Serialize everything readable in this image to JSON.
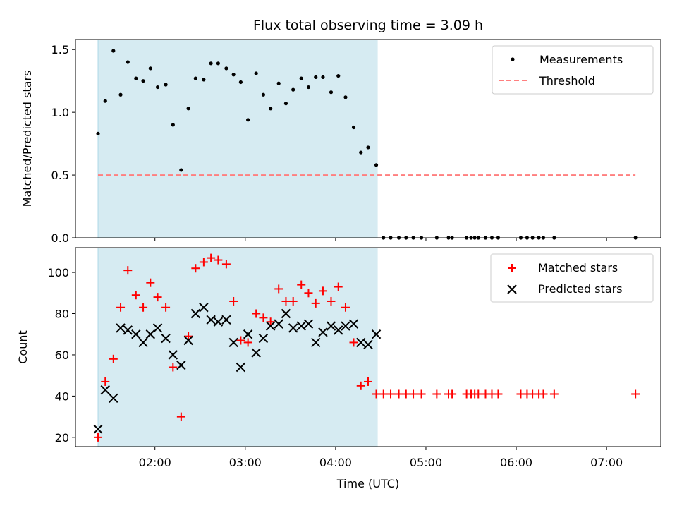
{
  "chart_data": [
    {
      "type": "scatter",
      "title": "Flux total observing time = 3.09 h",
      "xlabel": "",
      "ylabel": "Matched/Predicted stars",
      "ylim": [
        0,
        1.58
      ],
      "yticks": [
        0.0,
        0.5,
        1.0,
        1.5
      ],
      "ytick_labels": [
        "0.0",
        "0.5",
        "1.0",
        "1.5"
      ],
      "xlim": [
        1.12,
        7.6
      ],
      "legend_position": "upper right",
      "shaded_span": [
        1.37,
        4.46
      ],
      "shade_color": "#add8e6",
      "series": [
        {
          "name": "Measurements",
          "kind": "points",
          "color": "#000000",
          "x": [
            1.37,
            1.45,
            1.54,
            1.62,
            1.7,
            1.79,
            1.87,
            1.95,
            2.03,
            2.12,
            2.2,
            2.29,
            2.37,
            2.45,
            2.54,
            2.62,
            2.7,
            2.79,
            2.87,
            2.95,
            3.03,
            3.12,
            3.2,
            3.28,
            3.37,
            3.45,
            3.53,
            3.62,
            3.7,
            3.78,
            3.86,
            3.95,
            4.03,
            4.11,
            4.2,
            4.28,
            4.36,
            4.45,
            4.53,
            4.61,
            4.7,
            4.78,
            4.86,
            4.95,
            5.12,
            5.25,
            5.29,
            5.45,
            5.5,
            5.54,
            5.58,
            5.66,
            5.73,
            5.8,
            6.05,
            6.12,
            6.18,
            6.25,
            6.3,
            6.42,
            7.32
          ],
          "values": [
            0.83,
            1.09,
            1.49,
            1.14,
            1.4,
            1.27,
            1.25,
            1.35,
            1.2,
            1.22,
            0.9,
            0.54,
            1.03,
            1.27,
            1.26,
            1.39,
            1.39,
            1.35,
            1.3,
            1.24,
            0.94,
            1.31,
            1.14,
            1.03,
            1.23,
            1.07,
            1.18,
            1.27,
            1.2,
            1.28,
            1.28,
            1.16,
            1.29,
            1.12,
            0.88,
            0.68,
            0.72,
            0.58,
            0,
            0,
            0,
            0,
            0,
            0,
            0,
            0,
            0,
            0,
            0,
            0,
            0,
            0,
            0,
            0,
            0,
            0,
            0,
            0,
            0,
            0,
            0
          ]
        },
        {
          "name": "Threshold",
          "kind": "dashed-line",
          "color": "#ff7f7f",
          "x": [
            1.37,
            7.32
          ],
          "values": [
            0.5,
            0.5
          ]
        }
      ]
    },
    {
      "type": "scatter",
      "title": "",
      "xlabel": "Time (UTC)",
      "ylabel": "Count",
      "ylim": [
        15.5,
        112
      ],
      "yticks": [
        20,
        40,
        60,
        80,
        100
      ],
      "ytick_labels": [
        "20",
        "40",
        "60",
        "80",
        "100"
      ],
      "xlim": [
        1.12,
        7.6
      ],
      "xticks": [
        2,
        3,
        4,
        5,
        6,
        7
      ],
      "xtick_labels": [
        "02:00",
        "03:00",
        "04:00",
        "05:00",
        "06:00",
        "07:00"
      ],
      "legend_position": "upper right",
      "shaded_span": [
        1.37,
        4.46
      ],
      "shade_color": "#add8e6",
      "series": [
        {
          "name": "Matched stars",
          "marker": "plus",
          "color": "#ff0000",
          "x": [
            1.37,
            1.45,
            1.54,
            1.62,
            1.7,
            1.79,
            1.87,
            1.95,
            2.03,
            2.12,
            2.2,
            2.29,
            2.37,
            2.45,
            2.54,
            2.62,
            2.7,
            2.79,
            2.87,
            2.95,
            3.03,
            3.12,
            3.2,
            3.28,
            3.37,
            3.45,
            3.53,
            3.62,
            3.7,
            3.78,
            3.86,
            3.95,
            4.03,
            4.11,
            4.2,
            4.28,
            4.36,
            4.45,
            4.53,
            4.61,
            4.7,
            4.78,
            4.86,
            4.95,
            5.12,
            5.25,
            5.29,
            5.45,
            5.5,
            5.54,
            5.58,
            5.66,
            5.73,
            5.8,
            6.05,
            6.12,
            6.18,
            6.25,
            6.3,
            6.42,
            7.32
          ],
          "values": [
            20,
            47,
            58,
            83,
            101,
            89,
            83,
            95,
            88,
            83,
            54,
            30,
            69,
            102,
            105,
            107,
            106,
            104,
            86,
            67,
            66,
            80,
            78,
            76,
            92,
            86,
            86,
            94,
            90,
            85,
            91,
            86,
            93,
            83,
            66,
            45,
            47,
            41,
            41,
            41,
            41,
            41,
            41,
            41,
            41,
            41,
            41,
            41,
            41,
            41,
            41,
            41,
            41,
            41,
            41,
            41,
            41,
            41,
            41,
            41,
            41
          ]
        },
        {
          "name": "Predicted stars",
          "marker": "x",
          "color": "#000000",
          "x": [
            1.37,
            1.45,
            1.54,
            1.62,
            1.7,
            1.79,
            1.87,
            1.95,
            2.03,
            2.12,
            2.2,
            2.29,
            2.37,
            2.45,
            2.54,
            2.62,
            2.7,
            2.79,
            2.87,
            2.95,
            3.03,
            3.12,
            3.2,
            3.28,
            3.37,
            3.45,
            3.53,
            3.62,
            3.7,
            3.78,
            3.86,
            3.95,
            4.03,
            4.11,
            4.2,
            4.28,
            4.36,
            4.45
          ],
          "values": [
            24,
            43,
            39,
            73,
            72,
            70,
            66,
            70,
            73,
            68,
            60,
            55,
            67,
            80,
            83,
            77,
            76,
            77,
            66,
            54,
            70,
            61,
            68,
            74,
            75,
            80,
            73,
            74,
            75,
            66,
            71,
            74,
            72,
            74,
            75,
            66,
            65,
            70
          ]
        }
      ]
    }
  ]
}
